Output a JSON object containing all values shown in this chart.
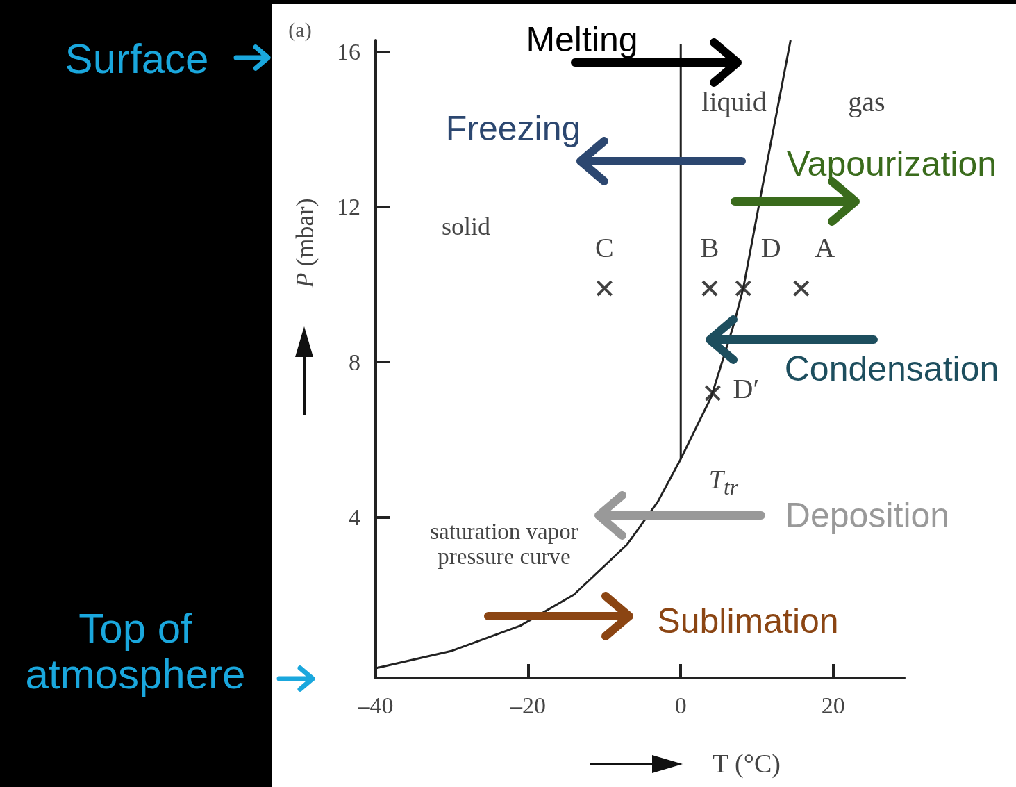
{
  "chart_data": {
    "type": "line",
    "xlabel": "T (°C)",
    "ylabel": "P (mbar)",
    "xlim": [
      -40,
      29.3
    ],
    "ylim": [
      -0.15,
      16.3
    ],
    "xticks": [
      {
        "value": -40,
        "label": "–40"
      },
      {
        "value": -20,
        "label": "–20"
      },
      0,
      20
    ],
    "yticks": [
      4,
      8,
      12,
      16
    ],
    "series": [
      {
        "color": "#222222",
        "marker": "none",
        "x": [
          -40,
          -30,
          -21,
          -14,
          -7,
          -3,
          0,
          4,
          7,
          8.2,
          10.4,
          14.4
        ],
        "values": [
          0.1,
          0.55,
          1.2,
          2.0,
          3.3,
          4.4,
          5.5,
          7.1,
          9.0,
          9.9,
          12.2,
          16.3
        ]
      },
      {
        "color": "#222222",
        "marker": "none",
        "x": [
          0,
          0
        ],
        "values": [
          5.5,
          16.2
        ]
      },
      {
        "type": "scatter",
        "color": "#111111",
        "marker": "cross",
        "x": [
          -10,
          3.8,
          8.2,
          15.8,
          4.2
        ],
        "values": [
          9.9,
          9.9,
          9.9,
          9.9,
          7.2
        ]
      }
    ],
    "annotations": [
      "(a)",
      "liquid",
      "gas",
      "solid",
      "saturation vapor pressure curve",
      "T$_{tr}$",
      "Melting",
      "Freezing",
      "Vapourization",
      "Condensation",
      "Deposition",
      "Sublimation",
      "Surface",
      "Top of atmosphere",
      {
        "text": "C",
        "x": -10,
        "y": 9.9
      },
      {
        "text": "B",
        "x": 3.8,
        "y": 9.9
      },
      {
        "text": "D",
        "x": 8.2,
        "y": 9.9
      },
      {
        "text": "A",
        "x": 15.8,
        "y": 9.9
      },
      {
        "text": "D′",
        "x": 4.2,
        "y": 7.2
      }
    ]
  }
}
